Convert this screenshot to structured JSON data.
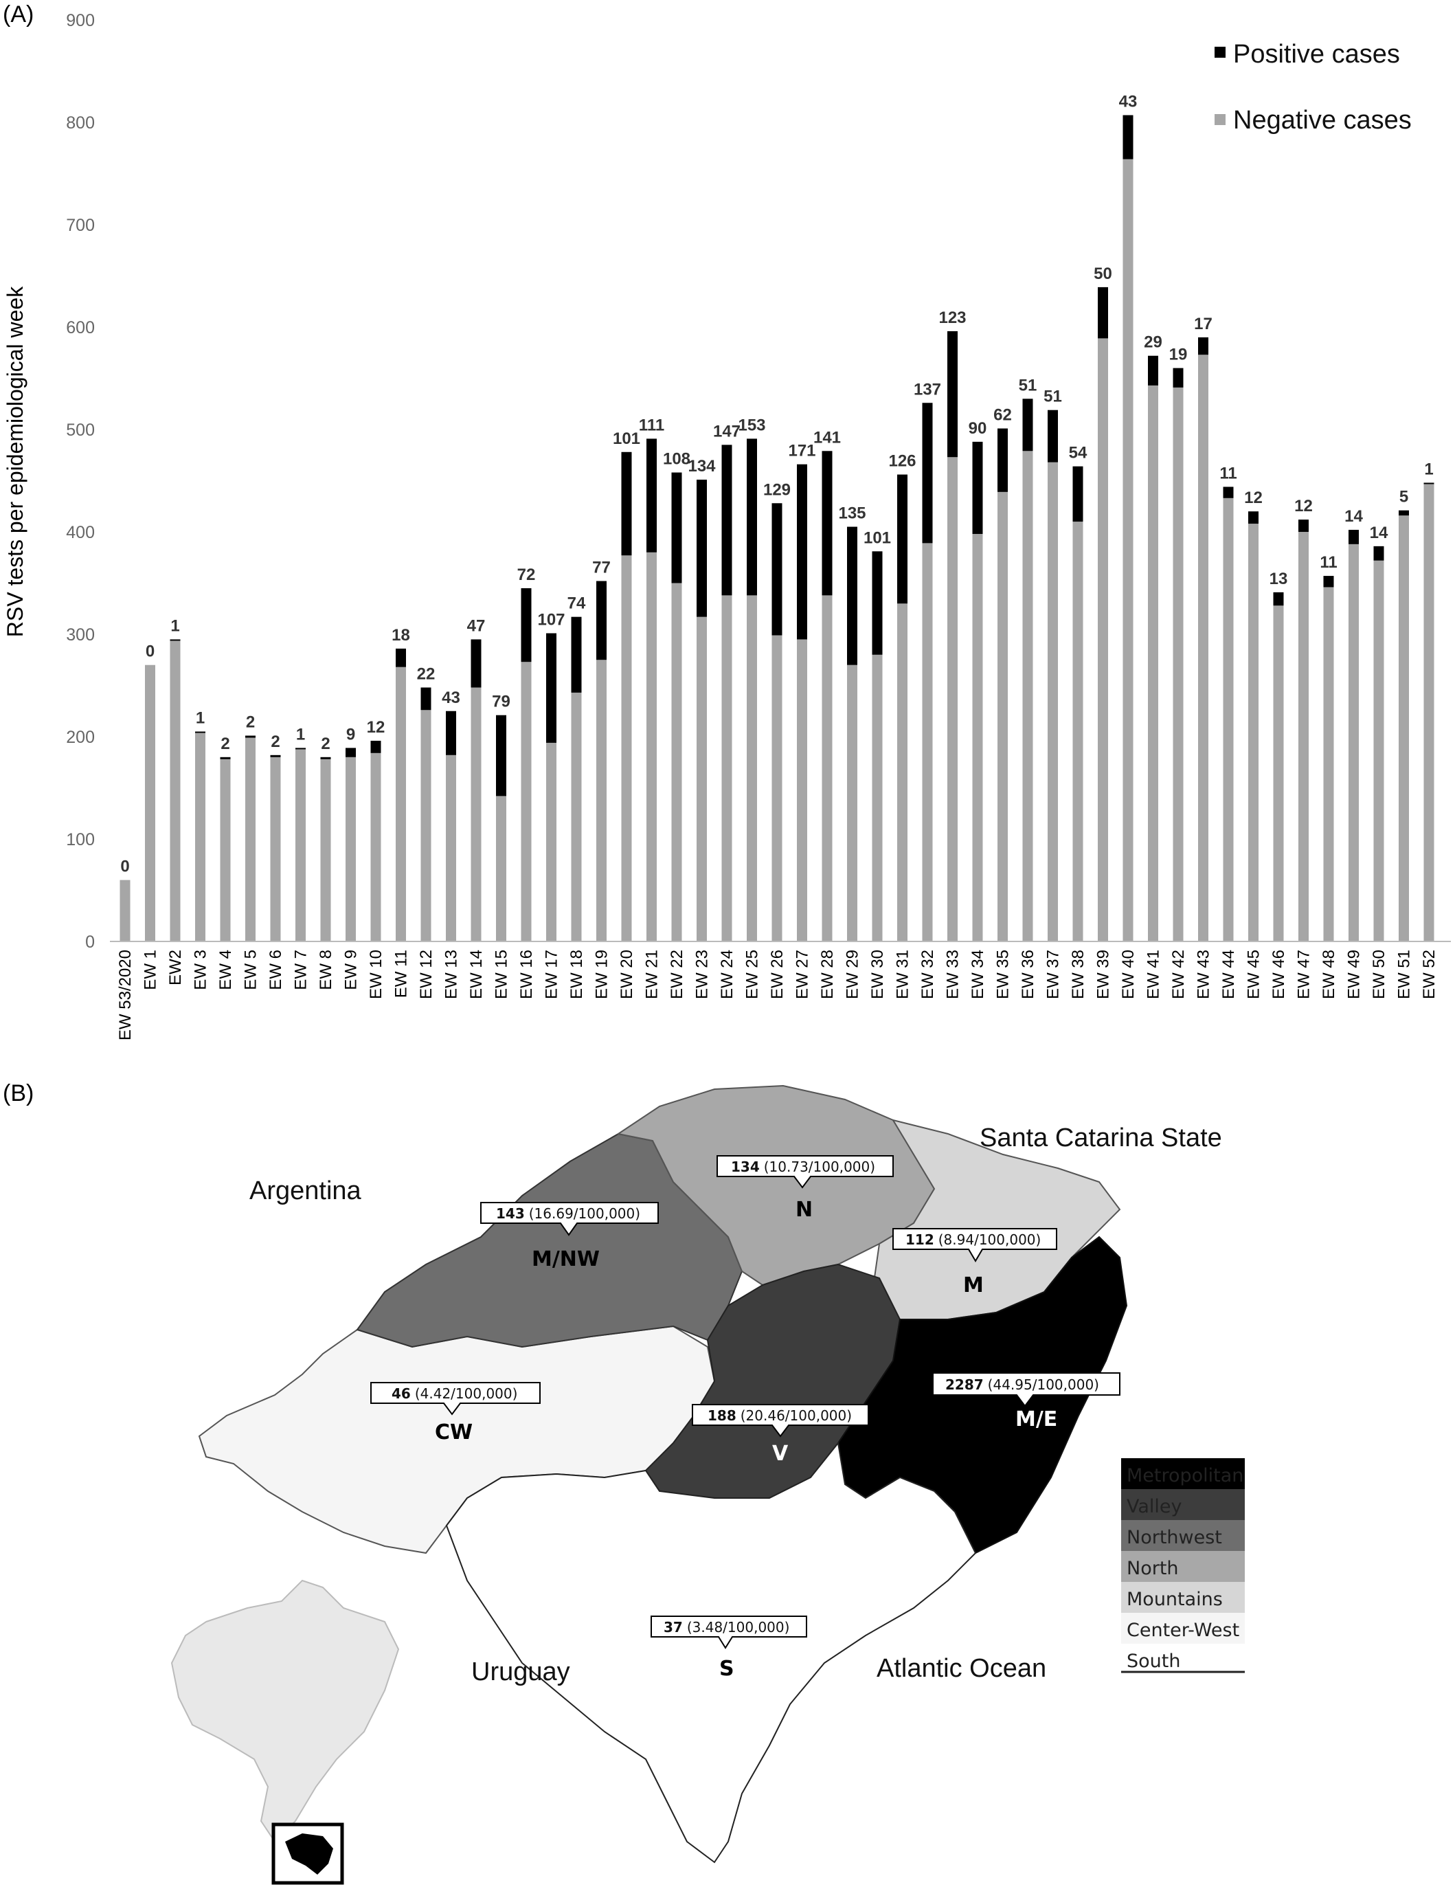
{
  "panel_a_label": "(A)",
  "panel_b_label": "(B)",
  "chart_data": {
    "type": "bar",
    "stacked": true,
    "ylabel": "RSV tests per epidemiological week",
    "xlabel": "",
    "ylim": [
      0,
      900
    ],
    "yticks": [
      0,
      100,
      200,
      300,
      400,
      500,
      600,
      700,
      800,
      900
    ],
    "grid": false,
    "legend_position": "top-right",
    "categories": [
      "EW 53/2020",
      "EW 1",
      "EW2",
      "EW 3",
      "EW 4",
      "EW 5",
      "EW 6",
      "EW 7",
      "EW 8",
      "EW 9",
      "EW 10",
      "EW 11",
      "EW 12",
      "EW 13",
      "EW 14",
      "EW 15",
      "EW 16",
      "EW 17",
      "EW 18",
      "EW 19",
      "EW 20",
      "EW 21",
      "EW 22",
      "EW 23",
      "EW 24",
      "EW 25",
      "EW 26",
      "EW 27",
      "EW 28",
      "EW 29",
      "EW 30",
      "EW 31",
      "EW 32",
      "EW 33",
      "EW 34",
      "EW 35",
      "EW 36",
      "EW 37",
      "EW 38",
      "EW 39",
      "EW 40",
      "EW 41",
      "EW 42",
      "EW 43",
      "EW 44",
      "EW 45",
      "EW 46",
      "EW 47",
      "EW 48",
      "EW 49",
      "EW 50",
      "EW 51",
      "EW 52"
    ],
    "series": [
      {
        "name": "Negative cases",
        "color": "#a6a6a6",
        "values": [
          60,
          270,
          294,
          204,
          178,
          199,
          180,
          188,
          178,
          180,
          184,
          268,
          226,
          182,
          248,
          142,
          273,
          194,
          243,
          275,
          377,
          380,
          350,
          317,
          338,
          338,
          299,
          295,
          338,
          270,
          280,
          330,
          389,
          473,
          398,
          439,
          479,
          468,
          410,
          589,
          764,
          543,
          541,
          573,
          433,
          408,
          328,
          400,
          346,
          388,
          372,
          416,
          447
        ]
      },
      {
        "name": "Positive cases",
        "color": "#000000",
        "values": [
          0,
          0,
          1,
          1,
          2,
          2,
          2,
          1,
          2,
          9,
          12,
          18,
          22,
          43,
          47,
          79,
          72,
          107,
          74,
          77,
          101,
          111,
          108,
          134,
          147,
          153,
          129,
          171,
          141,
          135,
          101,
          126,
          137,
          123,
          90,
          62,
          51,
          51,
          54,
          50,
          43,
          29,
          19,
          17,
          11,
          12,
          13,
          12,
          11,
          14,
          14,
          5,
          1
        ]
      }
    ]
  },
  "map": {
    "geo_labels": {
      "argentina": "Argentina",
      "santa_catarina": "Santa Catarina State",
      "uruguay": "Uruguay",
      "atlantic": "Atlantic Ocean"
    },
    "regions": [
      {
        "code": "M/NW",
        "count": "143",
        "rate": "(16.69/100,000)"
      },
      {
        "code": "N",
        "count": "134",
        "rate": "(10.73/100,000)"
      },
      {
        "code": "M",
        "count": "112",
        "rate": "(8.94/100,000)"
      },
      {
        "code": "CW",
        "count": "46",
        "rate": "(4.42/100,000)"
      },
      {
        "code": "V",
        "count": "188",
        "rate": "(20.46/100,000)"
      },
      {
        "code": "M/E",
        "count": "2287",
        "rate": "(44.95/100,000)"
      },
      {
        "code": "S",
        "count": "37",
        "rate": "(3.48/100,000)"
      }
    ],
    "legend": [
      {
        "label": "Metropolitan",
        "color": "#000000"
      },
      {
        "label": "Valley",
        "color": "#3d3d3d"
      },
      {
        "label": "Northwest",
        "color": "#6e6e6e"
      },
      {
        "label": "North",
        "color": "#a8a8a8"
      },
      {
        "label": "Mountains",
        "color": "#d6d6d6"
      },
      {
        "label": "Center-West",
        "color": "#f5f5f5"
      },
      {
        "label": "South",
        "color": "#ffffff"
      }
    ]
  }
}
